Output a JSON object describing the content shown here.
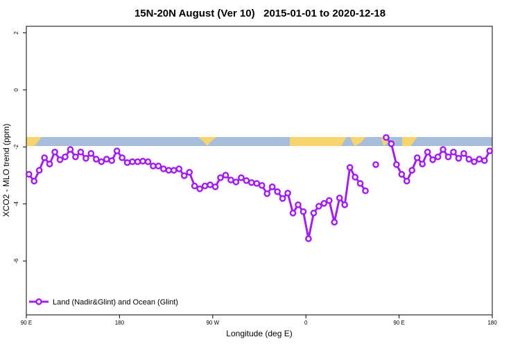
{
  "chart_data": {
    "type": "line",
    "title": "15N-20N August (Ver 10)   2015-01-01 to 2020-12-18",
    "xlabel": "Longitude (deg E)",
    "ylabel": "XCO2 - MLO trend (ppm)",
    "xlim": [
      90,
      540
    ],
    "xticks": [
      {
        "value": 90,
        "label": "90 E"
      },
      {
        "value": 180,
        "label": "180"
      },
      {
        "value": 270,
        "label": "90 W"
      },
      {
        "value": 360,
        "label": "0"
      },
      {
        "value": 450,
        "label": "90 E"
      },
      {
        "value": 540,
        "label": "180"
      }
    ],
    "ylim": [
      -7.89,
      2.23
    ],
    "yticks": [
      -6,
      -4,
      -2,
      0,
      2
    ],
    "legend": "bottom-left",
    "x": [
      92.5,
      97.5,
      102.5,
      107.5,
      112.5,
      117.5,
      122.5,
      127.5,
      132.5,
      137.5,
      142.5,
      147.5,
      152.5,
      157.5,
      162.5,
      167.5,
      172.5,
      177.5,
      182.5,
      187.5,
      192.5,
      197.5,
      202.5,
      207.5,
      212.5,
      217.5,
      222.5,
      227.5,
      232.5,
      237.5,
      242.5,
      247.5,
      252.5,
      257.5,
      262.5,
      267.5,
      272.5,
      277.5,
      282.5,
      287.5,
      292.5,
      297.5,
      302.5,
      307.5,
      312.5,
      317.5,
      322.5,
      327.5,
      332.5,
      337.5,
      342.5,
      347.5,
      352.5,
      357.5,
      362.5,
      367.5,
      372.5,
      377.5,
      382.5,
      387.5,
      392.5,
      397.5,
      402.5,
      407.5,
      412.5,
      417.5,
      422.5,
      427.5,
      432.5,
      437.5,
      442.5,
      447.5,
      452.5,
      457.5,
      462.5,
      467.5,
      472.5,
      477.5,
      482.5,
      487.5,
      492.5,
      497.5,
      502.5,
      507.5,
      512.5,
      517.5,
      522.5,
      527.5,
      532.5,
      537.5
    ],
    "series": [
      {
        "name": "Land (Nadir&Glint) and Ocean (Glint)",
        "color": "#a020f0",
        "values": [
          -2.96,
          -3.2,
          -2.82,
          -2.38,
          -2.6,
          -2.18,
          -2.45,
          -2.35,
          -2.09,
          -2.35,
          -2.18,
          -2.4,
          -2.23,
          -2.43,
          -2.52,
          -2.43,
          -2.48,
          -2.14,
          -2.38,
          -2.55,
          -2.52,
          -2.52,
          -2.5,
          -2.52,
          -2.67,
          -2.67,
          -2.77,
          -2.82,
          -2.82,
          -2.77,
          -3.01,
          -2.89,
          -3.37,
          -3.47,
          -3.37,
          -3.33,
          -3.4,
          -3.08,
          -2.99,
          -3.16,
          -3.23,
          -3.08,
          -3.18,
          -3.25,
          -3.28,
          -3.35,
          -3.64,
          -3.4,
          -3.57,
          -3.81,
          -3.62,
          -4.32,
          -4.03,
          -4.27,
          -5.22,
          -4.32,
          -4.08,
          -3.98,
          -3.88,
          -4.64,
          -3.79,
          -4.03,
          -2.72,
          -3.06,
          -3.28,
          -3.54,
          null,
          -2.62,
          null,
          -1.67,
          -1.89,
          -2.62,
          -2.96,
          -3.2,
          -2.82,
          -2.38,
          -2.6,
          -2.18,
          -2.45,
          -2.35,
          -2.09,
          -2.35,
          -2.18,
          -2.4,
          -2.23,
          -2.43,
          -2.52,
          -2.43,
          -2.48,
          -2.14
        ]
      }
    ]
  }
}
